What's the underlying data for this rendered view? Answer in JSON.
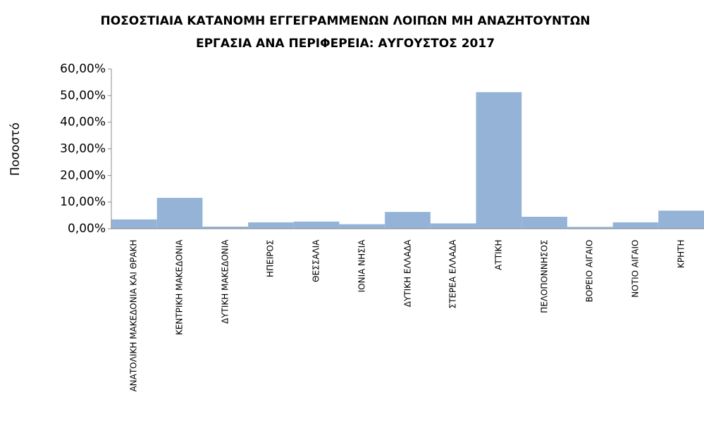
{
  "chart_data": {
    "type": "bar",
    "title": [
      "ΠΟΣΟΣΤΙΑΙΑ ΚΑΤΑΝΟΜΗ ΕΓΓΕΓΡΑΜΜΕΝΩΝ ΛΟΙΠΩΝ ΜΗ ΑΝΑΖΗΤΟΥΝΤΩΝ",
      "ΕΡΓΑΣΙΑ ΑΝΑ ΠΕΡΙΦΕΡΕΙΑ: ΑΥΓΟΥΣΤΟΣ 2017"
    ],
    "y_label": "Ποσοστό",
    "categories": [
      "ΑΝΑΤΟΛΙΚΗ ΜΑΚΕΔΟΝΙΑ ΚΑΙ ΘΡΑΚΗ",
      "ΚΕΝΤΡΙΚΗ ΜΑΚΕΔΟΝΙΑ",
      "ΔΥΤΙΚΗ ΜΑΚΕΔΟΝΙΑ",
      "ΗΠΕΙΡΟΣ",
      "ΘΕΣΣΑΛΙΑ",
      "ΙΟΝΙΑ ΝΗΣΙΑ",
      "ΔΥΤΙΚΗ ΕΛΛΑΔΑ",
      "ΣΤΕΡΕΑ ΕΛΛΑΔΑ",
      "ΑΤΤΙΚΗ",
      "ΠΕΛΟΠΟΝΝΗΣΟΣ",
      "ΒΟΡΕΙΟ ΑΙΓΑΙΟ",
      "ΝΟΤΙΟ ΑΙΓΑΙΟ",
      "ΚΡΗΤΗ"
    ],
    "values": [
      3.5,
      11.6,
      0.8,
      2.4,
      2.7,
      1.7,
      6.3,
      2.0,
      51.3,
      4.5,
      0.7,
      2.4,
      6.8
    ],
    "color": "#95b3d7",
    "ylim": [
      0,
      60
    ],
    "yticks": [
      {
        "value": 0,
        "label": "0,00%"
      },
      {
        "value": 10,
        "label": "10,00%"
      },
      {
        "value": 20,
        "label": "20,00%"
      },
      {
        "value": 30,
        "label": "30,00%"
      },
      {
        "value": 40,
        "label": "40,00%"
      },
      {
        "value": 50,
        "label": "50,00%"
      },
      {
        "value": 60,
        "label": "60,00%"
      }
    ],
    "grid": false
  }
}
